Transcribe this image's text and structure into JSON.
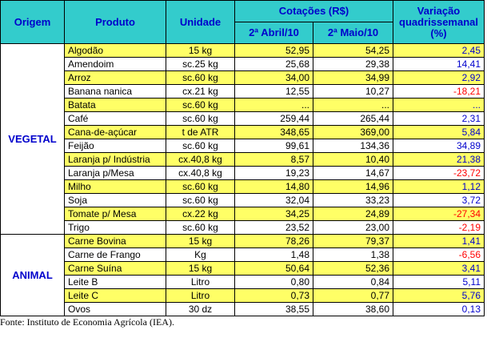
{
  "header": {
    "origin": "Origem",
    "product": "Produto",
    "unit": "Unidade",
    "prices": "Cotações (R$)",
    "april": "2ª Abril/10",
    "may": "2ª Maio/10",
    "variation": "Variação quadrissemanal (%)",
    "background": "#33cccc",
    "color": "#0000cc"
  },
  "highlight": "#ffff66",
  "negative_color": "#ff0000",
  "positive_color": "#0000cc",
  "groups": [
    {
      "origin": "VEGETAL",
      "rows": [
        {
          "product": "Algodão",
          "unit": "15 kg",
          "april": "52,95",
          "may": "54,25",
          "variation": "2,45",
          "highlighted": true
        },
        {
          "product": "Amendoim",
          "unit": "sc.25 kg",
          "april": "25,68",
          "may": "29,38",
          "variation": "14,41",
          "highlighted": false
        },
        {
          "product": "Arroz",
          "unit": "sc.60 kg",
          "april": "34,00",
          "may": "34,99",
          "variation": "2,92",
          "highlighted": true
        },
        {
          "product": "Banana nanica",
          "unit": "cx.21 kg",
          "april": "12,55",
          "may": "10,27",
          "variation": "-18,21",
          "highlighted": false
        },
        {
          "product": "Batata",
          "unit": "sc.60 kg",
          "april": "...",
          "may": "...",
          "variation": "...",
          "highlighted": true
        },
        {
          "product": "Café",
          "unit": "sc.60 kg",
          "april": "259,44",
          "may": "265,44",
          "variation": "2,31",
          "highlighted": false
        },
        {
          "product": "Cana-de-açúcar",
          "unit": "t de ATR",
          "april": "348,65",
          "may": "369,00",
          "variation": "5,84",
          "highlighted": true
        },
        {
          "product": "Feijão",
          "unit": "sc.60 kg",
          "april": "99,61",
          "may": "134,36",
          "variation": "34,89",
          "highlighted": false
        },
        {
          "product": "Laranja p/ Indústria",
          "unit": "cx.40,8 kg",
          "april": "8,57",
          "may": "10,40",
          "variation": "21,38",
          "highlighted": true
        },
        {
          "product": "Laranja p/Mesa",
          "unit": "cx.40,8 kg",
          "april": "19,23",
          "may": "14,67",
          "variation": "-23,72",
          "highlighted": false
        },
        {
          "product": "Milho",
          "unit": "sc.60 kg",
          "april": "14,80",
          "may": "14,96",
          "variation": "1,12",
          "highlighted": true
        },
        {
          "product": "Soja",
          "unit": "sc.60 kg",
          "april": "32,04",
          "may": "33,23",
          "variation": "3,72",
          "highlighted": false
        },
        {
          "product": "Tomate p/ Mesa",
          "unit": "cx.22 kg",
          "april": "34,25",
          "may": "24,89",
          "variation": "-27,34",
          "highlighted": true
        },
        {
          "product": "Trigo",
          "unit": "sc.60 kg",
          "april": "23,52",
          "may": "23,00",
          "variation": "-2,19",
          "highlighted": false
        }
      ]
    },
    {
      "origin": "ANIMAL",
      "rows": [
        {
          "product": "Carne Bovina",
          "unit": "15 kg",
          "april": "78,26",
          "may": "79,37",
          "variation": "1,41",
          "highlighted": true
        },
        {
          "product": "Carne de Frango",
          "unit": "Kg",
          "april": "1,48",
          "may": "1,38",
          "variation": "-6,56",
          "highlighted": false
        },
        {
          "product": "Carne Suína",
          "unit": "15 kg",
          "april": "50,64",
          "may": "52,36",
          "variation": "3,41",
          "highlighted": true
        },
        {
          "product": "Leite B",
          "unit": "Litro",
          "april": "0,80",
          "may": "0,84",
          "variation": "5,11",
          "highlighted": false
        },
        {
          "product": "Leite C",
          "unit": "Litro",
          "april": "0,73",
          "may": "0,77",
          "variation": "5,76",
          "highlighted": true
        },
        {
          "product": "Ovos",
          "unit": "30 dz",
          "april": "38,55",
          "may": "38,60",
          "variation": "0,13",
          "highlighted": false
        }
      ]
    }
  ],
  "footer": "Fonte: Instituto de Economia Agrícola (IEA)."
}
